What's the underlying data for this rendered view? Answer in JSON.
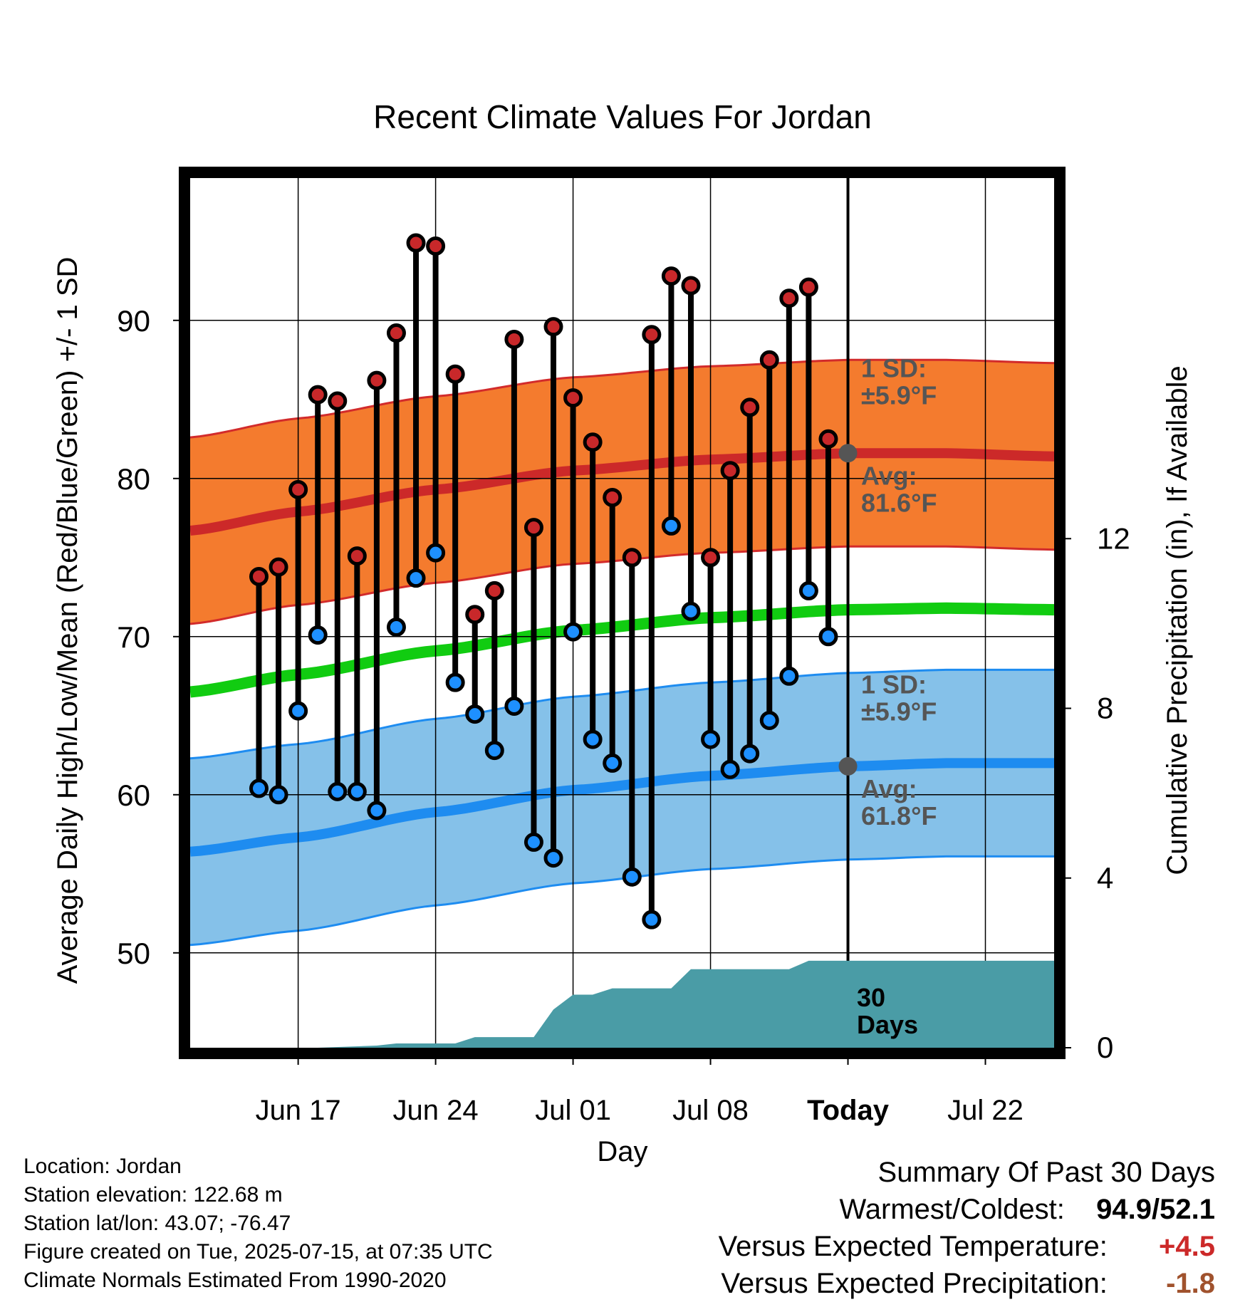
{
  "chart_data": {
    "type": "line",
    "title": "Recent Climate Values For Jordan",
    "xlabel": "Day",
    "ylabel": "Average Daily High/Low/Mean (Red/Blue/Green) +/- 1 SD",
    "y2label": "Cumulative Precipitation (in), If Available",
    "x_range_days": [
      -33.5,
      10.5
    ],
    "ylim": [
      44,
      99
    ],
    "y2lim": [
      0,
      20.5
    ],
    "x_ticks": [
      {
        "day": -28,
        "label": "Jun 17"
      },
      {
        "day": -21,
        "label": "Jun 24"
      },
      {
        "day": -14,
        "label": "Jul 01"
      },
      {
        "day": -7,
        "label": "Jul 08"
      },
      {
        "day": 0,
        "label": "Today"
      },
      {
        "day": 7,
        "label": "Jul 22"
      }
    ],
    "y_ticks": [
      50,
      60,
      70,
      80,
      90
    ],
    "y2_ticks": [
      0,
      4,
      8,
      12
    ],
    "grid": true,
    "colors": {
      "high_marker": "#c8282a",
      "low_marker": "#1e90ff",
      "high_band": "#f47b2e",
      "high_mean_line": "#cc2929",
      "high_band_edge": "#d22b2b",
      "low_band": "#85c1e9",
      "low_mean_line": "#1e8cf0",
      "low_band_edge": "#1e8cf0",
      "mean_line": "#11cc11",
      "precip": "#4a9ca6",
      "annotation": "#555555",
      "positive_anomaly": "#cc2929",
      "negative_anomaly": "#a0522d"
    },
    "normals": {
      "days": [
        -33.5,
        -28,
        -21,
        -14,
        -7,
        0,
        5,
        10.5
      ],
      "high_mean": [
        76.7,
        77.9,
        79.3,
        80.5,
        81.2,
        81.6,
        81.6,
        81.4
      ],
      "high_sd": 5.9,
      "low_mean": [
        56.4,
        57.3,
        58.9,
        60.3,
        61.2,
        61.8,
        62.0,
        62.0
      ],
      "low_sd": 5.9,
      "daily_mean": [
        66.5,
        67.6,
        69.1,
        70.4,
        71.2,
        71.7,
        71.8,
        71.7
      ]
    },
    "series": [
      {
        "name": "High",
        "x": [
          -30,
          -29,
          -28,
          -27,
          -26,
          -25,
          -24,
          -23,
          -22,
          -21,
          -20,
          -19,
          -18,
          -17,
          -16,
          -15,
          -14,
          -13,
          -12,
          -11,
          -10,
          -9,
          -8,
          -7,
          -6,
          -5,
          -4,
          -3,
          -2,
          -1
        ],
        "values": [
          73.8,
          74.4,
          79.3,
          85.3,
          84.9,
          75.1,
          86.2,
          89.2,
          94.9,
          94.7,
          86.6,
          71.4,
          72.9,
          88.8,
          76.9,
          89.6,
          85.1,
          82.3,
          78.8,
          75.0,
          89.1,
          92.8,
          92.2,
          75.0,
          80.5,
          84.5,
          87.5,
          91.4,
          92.1,
          82.5
        ]
      },
      {
        "name": "Low",
        "x": [
          -30,
          -29,
          -28,
          -27,
          -26,
          -25,
          -24,
          -23,
          -22,
          -21,
          -20,
          -19,
          -18,
          -17,
          -16,
          -15,
          -14,
          -13,
          -12,
          -11,
          -10,
          -9,
          -8,
          -7,
          -6,
          -5,
          -4,
          -3,
          -2,
          -1
        ],
        "values": [
          60.4,
          60.0,
          65.3,
          70.1,
          60.2,
          60.2,
          59.0,
          70.6,
          73.7,
          75.3,
          67.1,
          65.1,
          62.8,
          65.6,
          57.0,
          56.0,
          70.3,
          63.5,
          62.0,
          54.8,
          52.1,
          77.0,
          71.6,
          63.5,
          61.6,
          62.6,
          64.7,
          67.5,
          72.9,
          70.0
        ]
      }
    ],
    "precipitation": {
      "x": [
        -30,
        -27,
        -24,
        -23,
        -22,
        -21,
        -20,
        -19,
        -18,
        -17,
        -16,
        -15,
        -14,
        -13,
        -12,
        -11,
        -10,
        -9,
        -8,
        -7,
        -6,
        -5,
        -4,
        -3,
        -2,
        -1,
        0,
        10.5
      ],
      "cumulative": [
        0,
        0,
        0.05,
        0.1,
        0.1,
        0.1,
        0.1,
        0.25,
        0.25,
        0.25,
        0.25,
        0.9,
        1.25,
        1.25,
        1.4,
        1.4,
        1.4,
        1.4,
        1.85,
        1.85,
        1.85,
        1.85,
        1.85,
        1.85,
        2.05,
        2.05,
        2.05,
        2.05
      ]
    },
    "annotations": {
      "high_sd": "1 SD:\n±5.9°F",
      "high_avg": "Avg:\n81.6°F",
      "low_sd": "1 SD:\n±5.9°F",
      "low_avg": "Avg:\n61.8°F",
      "window": "30\nDays"
    }
  },
  "footer": {
    "location": "Location: Jordan",
    "elevation": "Station elevation: 122.68 m",
    "latlon": "Station lat/lon: 43.07; -76.47",
    "created": "Figure created on Tue, 2025-07-15, at 07:35 UTC",
    "normals": "Climate Normals Estimated From 1990-2020"
  },
  "summary": {
    "title": "Summary Of Past 30 Days",
    "warmest_coldest_label": "Warmest/Coldest:",
    "warmest_coldest_value": "94.9/52.1",
    "temp_label": "Versus Expected Temperature:",
    "temp_value": "+4.5",
    "precip_label": "Versus Expected Precipitation:",
    "precip_value": "-1.8"
  }
}
